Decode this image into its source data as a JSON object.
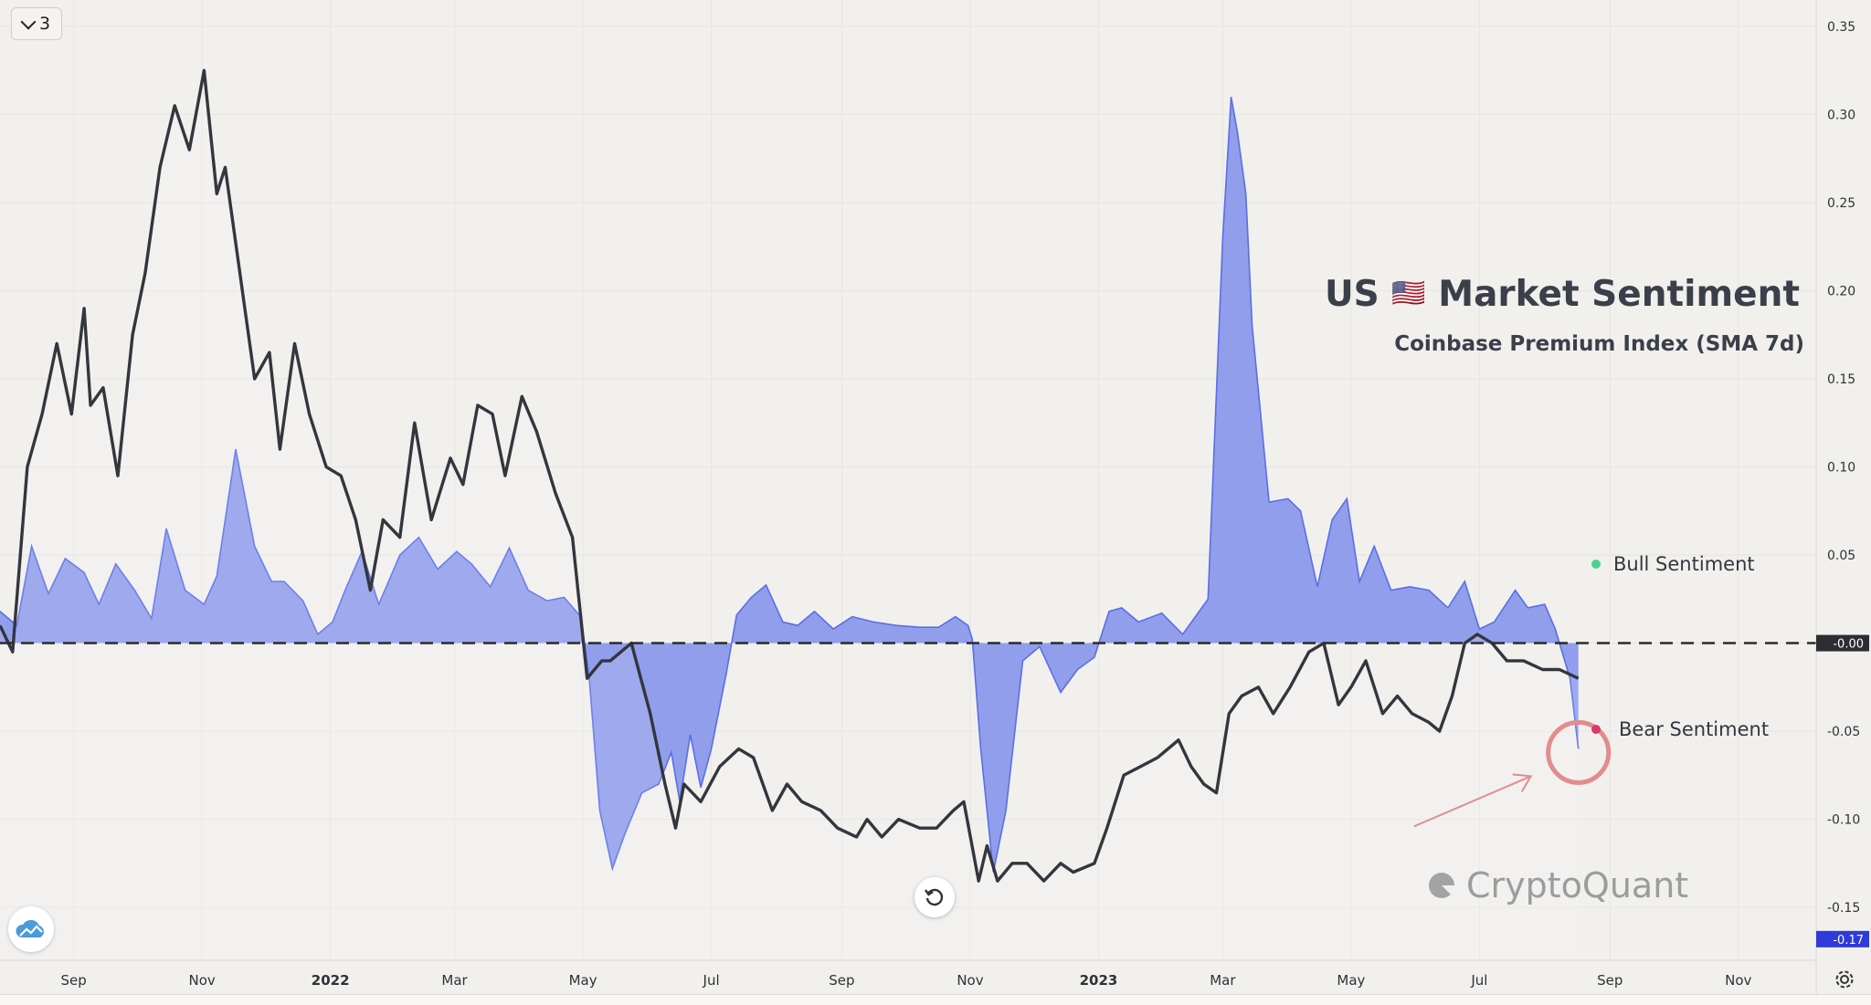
{
  "header": {
    "series_count": "3"
  },
  "title": {
    "country": "US",
    "flag": "🇺🇸",
    "main": "Market Sentiment",
    "subtitle": "Coinbase Premium Index (SMA 7d)"
  },
  "legend": {
    "bull": "Bull Sentiment",
    "bear": "Bear Sentiment",
    "bull_color": "#4fcf94",
    "bear_color": "#d9386b"
  },
  "brand": {
    "name": "CryptoQuant"
  },
  "colors": {
    "premium_fill": "#8b99ec",
    "premium_line": "#5a6ee6",
    "price_line": "#33363d",
    "zero_line": "#2b2b2b",
    "badge": "#2f3ad8",
    "annotation": "#e28c8f"
  },
  "badges": {
    "zero": "-0.00",
    "last": "-0.17"
  },
  "chart_data": {
    "type": "area",
    "title": "Market Sentiment",
    "subtitle": "Coinbase Premium Index (SMA 7d)",
    "ylim": [
      -0.18,
      0.365
    ],
    "xlim": [
      "2021-07-28",
      "2023-12-08"
    ],
    "y_ticks": [
      "0.35",
      "0.30",
      "0.25",
      "0.20",
      "0.15",
      "0.10",
      "0.05",
      "0.00",
      "-0.05",
      "-0.10",
      "-0.15"
    ],
    "x_ticks": [
      {
        "label": "Sep",
        "date": "2021-09-01",
        "bold": false
      },
      {
        "label": "Nov",
        "date": "2021-11-01",
        "bold": false
      },
      {
        "label": "2022",
        "date": "2022-01-01",
        "bold": true
      },
      {
        "label": "Mar",
        "date": "2022-03-01",
        "bold": false
      },
      {
        "label": "May",
        "date": "2022-05-01",
        "bold": false
      },
      {
        "label": "Jul",
        "date": "2022-07-01",
        "bold": false
      },
      {
        "label": "Sep",
        "date": "2022-09-01",
        "bold": false
      },
      {
        "label": "Nov",
        "date": "2022-11-01",
        "bold": false
      },
      {
        "label": "2023",
        "date": "2023-01-01",
        "bold": true
      },
      {
        "label": "Mar",
        "date": "2023-03-01",
        "bold": false
      },
      {
        "label": "May",
        "date": "2023-05-01",
        "bold": false
      },
      {
        "label": "Jul",
        "date": "2023-07-01",
        "bold": false
      },
      {
        "label": "Sep",
        "date": "2023-09-01",
        "bold": false
      },
      {
        "label": "Nov",
        "date": "2023-11-01",
        "bold": false
      }
    ],
    "grid": true,
    "series": [
      {
        "kind": "area",
        "x": [
          "2021-07-28",
          "2021-08-05",
          "2021-08-12",
          "2021-08-20",
          "2021-08-28",
          "2021-09-06",
          "2021-09-13",
          "2021-09-21",
          "2021-09-30",
          "2021-10-08",
          "2021-10-15",
          "2021-10-24",
          "2021-11-02",
          "2021-11-08",
          "2021-11-17",
          "2021-11-26",
          "2021-12-04",
          "2021-12-10",
          "2021-12-19",
          "2021-12-26",
          "2022-01-02",
          "2022-01-08",
          "2022-01-16",
          "2022-01-24",
          "2022-02-03",
          "2022-02-12",
          "2022-02-21",
          "2022-03-02",
          "2022-03-09",
          "2022-03-18",
          "2022-03-27",
          "2022-04-05",
          "2022-04-14",
          "2022-04-22",
          "2022-04-30",
          "2022-05-04",
          "2022-05-09",
          "2022-05-15",
          "2022-05-21",
          "2022-05-29",
          "2022-06-06",
          "2022-06-12",
          "2022-06-16",
          "2022-06-21",
          "2022-06-26",
          "2022-07-01",
          "2022-07-08",
          "2022-07-13",
          "2022-07-20",
          "2022-07-27",
          "2022-08-04",
          "2022-08-11",
          "2022-08-19",
          "2022-08-28",
          "2022-09-06",
          "2022-09-16",
          "2022-09-27",
          "2022-10-08",
          "2022-10-17",
          "2022-10-25",
          "2022-10-31",
          "2022-11-02",
          "2022-11-06",
          "2022-11-12",
          "2022-11-18",
          "2022-11-26",
          "2022-12-04",
          "2022-12-14",
          "2022-12-22",
          "2022-12-30",
          "2023-01-06",
          "2023-01-12",
          "2023-01-20",
          "2023-01-31",
          "2023-02-10",
          "2023-02-22",
          "2023-03-01",
          "2023-03-05",
          "2023-03-08",
          "2023-03-12",
          "2023-03-15",
          "2023-03-23",
          "2023-04-01",
          "2023-04-07",
          "2023-04-15",
          "2023-04-22",
          "2023-04-29",
          "2023-05-05",
          "2023-05-12",
          "2023-05-20",
          "2023-05-29",
          "2023-06-07",
          "2023-06-16",
          "2023-06-24",
          "2023-07-01",
          "2023-07-08",
          "2023-07-18",
          "2023-07-24",
          "2023-08-01",
          "2023-08-06",
          "2023-08-13",
          "2023-08-17"
        ],
        "values": [
          0.018,
          0.01,
          0.055,
          0.028,
          0.048,
          0.04,
          0.022,
          0.045,
          0.03,
          0.014,
          0.065,
          0.03,
          0.022,
          0.038,
          0.11,
          0.055,
          0.035,
          0.035,
          0.024,
          0.005,
          0.012,
          0.03,
          0.052,
          0.022,
          0.05,
          0.06,
          0.042,
          0.052,
          0.045,
          0.032,
          0.054,
          0.03,
          0.024,
          0.026,
          0.015,
          -0.02,
          -0.095,
          -0.128,
          -0.108,
          -0.085,
          -0.08,
          -0.062,
          -0.09,
          -0.052,
          -0.082,
          -0.06,
          -0.018,
          0.016,
          0.026,
          0.033,
          0.012,
          0.01,
          0.018,
          0.008,
          0.015,
          0.012,
          0.01,
          0.009,
          0.009,
          0.015,
          0.01,
          0.002,
          -0.06,
          -0.13,
          -0.095,
          -0.01,
          -0.002,
          -0.028,
          -0.015,
          -0.008,
          0.018,
          0.02,
          0.012,
          0.017,
          0.005,
          0.025,
          0.23,
          0.31,
          0.29,
          0.255,
          0.18,
          0.08,
          0.082,
          0.075,
          0.032,
          0.07,
          0.082,
          0.035,
          0.055,
          0.03,
          0.032,
          0.03,
          0.02,
          0.035,
          0.008,
          0.012,
          0.03,
          0.02,
          0.022,
          0.008,
          -0.02,
          -0.06
        ],
        "color": "#8b99ec"
      },
      {
        "kind": "line",
        "x": [
          "2021-07-28",
          "2021-08-03",
          "2021-08-10",
          "2021-08-17",
          "2021-08-24",
          "2021-08-31",
          "2021-09-06",
          "2021-09-09",
          "2021-09-15",
          "2021-09-22",
          "2021-09-29",
          "2021-10-05",
          "2021-10-12",
          "2021-10-19",
          "2021-10-26",
          "2021-11-02",
          "2021-11-08",
          "2021-11-12",
          "2021-11-19",
          "2021-11-26",
          "2021-12-03",
          "2021-12-08",
          "2021-12-15",
          "2021-12-22",
          "2021-12-30",
          "2022-01-06",
          "2022-01-13",
          "2022-01-20",
          "2022-01-26",
          "2022-02-03",
          "2022-02-10",
          "2022-02-18",
          "2022-02-27",
          "2022-03-05",
          "2022-03-12",
          "2022-03-19",
          "2022-03-25",
          "2022-04-02",
          "2022-04-09",
          "2022-04-18",
          "2022-04-26",
          "2022-05-03",
          "2022-05-10",
          "2022-05-14",
          "2022-05-24",
          "2022-06-02",
          "2022-06-09",
          "2022-06-14",
          "2022-06-18",
          "2022-06-26",
          "2022-07-05",
          "2022-07-14",
          "2022-07-21",
          "2022-07-30",
          "2022-08-06",
          "2022-08-13",
          "2022-08-22",
          "2022-08-30",
          "2022-09-08",
          "2022-09-13",
          "2022-09-20",
          "2022-09-28",
          "2022-10-08",
          "2022-10-16",
          "2022-10-24",
          "2022-10-29",
          "2022-11-05",
          "2022-11-09",
          "2022-11-14",
          "2022-11-21",
          "2022-11-28",
          "2022-12-06",
          "2022-12-14",
          "2022-12-20",
          "2022-12-30",
          "2023-01-05",
          "2023-01-13",
          "2023-01-21",
          "2023-01-29",
          "2023-02-08",
          "2023-02-14",
          "2023-02-20",
          "2023-02-26",
          "2023-03-04",
          "2023-03-10",
          "2023-03-18",
          "2023-03-25",
          "2023-04-02",
          "2023-04-11",
          "2023-04-18",
          "2023-04-25",
          "2023-05-01",
          "2023-05-08",
          "2023-05-16",
          "2023-05-23",
          "2023-05-30",
          "2023-06-07",
          "2023-06-12",
          "2023-06-18",
          "2023-06-24",
          "2023-06-30",
          "2023-07-07",
          "2023-07-14",
          "2023-07-22",
          "2023-07-31",
          "2023-08-08",
          "2023-08-17"
        ],
        "values": [
          0.01,
          -0.005,
          0.1,
          0.13,
          0.17,
          0.13,
          0.19,
          0.135,
          0.145,
          0.095,
          0.175,
          0.21,
          0.27,
          0.305,
          0.28,
          0.325,
          0.255,
          0.27,
          0.21,
          0.15,
          0.165,
          0.11,
          0.17,
          0.13,
          0.1,
          0.095,
          0.07,
          0.03,
          0.07,
          0.06,
          0.125,
          0.07,
          0.105,
          0.09,
          0.135,
          0.13,
          0.095,
          0.14,
          0.12,
          0.085,
          0.06,
          -0.02,
          -0.01,
          -0.01,
          0.0,
          -0.04,
          -0.08,
          -0.105,
          -0.08,
          -0.09,
          -0.07,
          -0.06,
          -0.065,
          -0.095,
          -0.08,
          -0.09,
          -0.095,
          -0.105,
          -0.11,
          -0.1,
          -0.11,
          -0.1,
          -0.105,
          -0.105,
          -0.095,
          -0.09,
          -0.135,
          -0.115,
          -0.135,
          -0.125,
          -0.125,
          -0.135,
          -0.125,
          -0.13,
          -0.125,
          -0.105,
          -0.075,
          -0.07,
          -0.065,
          -0.055,
          -0.07,
          -0.08,
          -0.085,
          -0.04,
          -0.03,
          -0.025,
          -0.04,
          -0.025,
          -0.005,
          0.0,
          -0.035,
          -0.025,
          -0.01,
          -0.04,
          -0.03,
          -0.04,
          -0.045,
          -0.05,
          -0.03,
          0.0,
          0.005,
          0.0,
          -0.01,
          -0.01,
          -0.015,
          -0.015,
          -0.02
        ],
        "color": "#33363d"
      }
    ],
    "zero_line": 0.0,
    "legend": [
      "Bull Sentiment",
      "Bear Sentiment"
    ],
    "legend_position": "right"
  }
}
